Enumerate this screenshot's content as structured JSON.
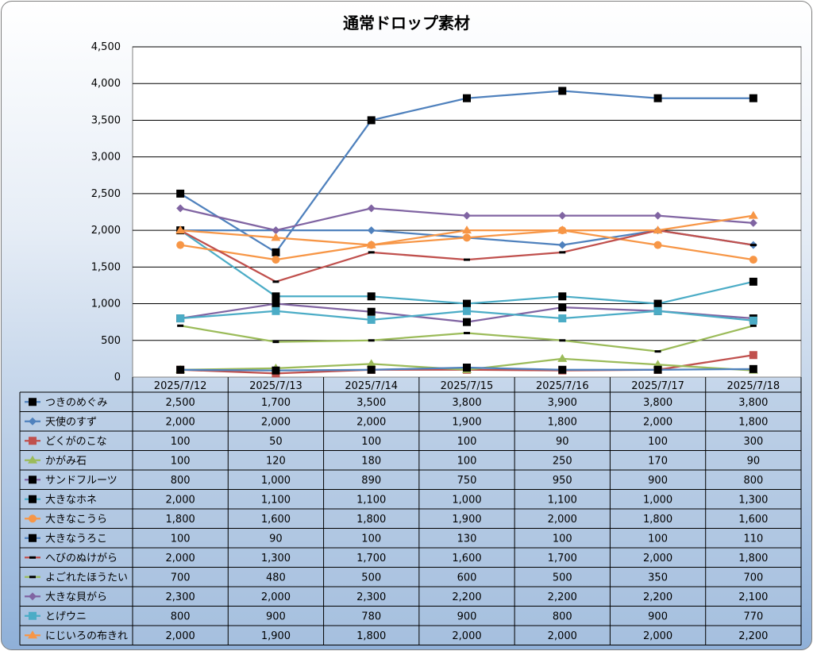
{
  "chart_data": {
    "type": "line",
    "title": "通常ドロップ素材",
    "categories": [
      "2025/7/12",
      "2025/7/13",
      "2025/7/14",
      "2025/7/15",
      "2025/7/16",
      "2025/7/17",
      "2025/7/18"
    ],
    "ylim": [
      0,
      4500
    ],
    "yticks": [
      "0",
      "500",
      "1,000",
      "1,500",
      "2,000",
      "2,500",
      "3,000",
      "3,500",
      "4,000",
      "4,500"
    ],
    "grid": true,
    "legend": "data-table",
    "series": [
      {
        "name": "つきのめぐみ",
        "values": [
          2500,
          1700,
          3500,
          3800,
          3900,
          3800,
          3800
        ],
        "labels": [
          "2,500",
          "1,700",
          "3,500",
          "3,800",
          "3,900",
          "3,800",
          "3,800"
        ],
        "color": "#4f81bd",
        "marker": "square-black"
      },
      {
        "name": "天使のすず",
        "values": [
          2000,
          2000,
          2000,
          1900,
          1800,
          2000,
          1800
        ],
        "labels": [
          "2,000",
          "2,000",
          "2,000",
          "1,900",
          "1,800",
          "2,000",
          "1,800"
        ],
        "color": "#4f81bd",
        "marker": "diamond"
      },
      {
        "name": "どくがのこな",
        "values": [
          100,
          50,
          100,
          100,
          90,
          100,
          300
        ],
        "labels": [
          "100",
          "50",
          "100",
          "100",
          "90",
          "100",
          "300"
        ],
        "color": "#c0504d",
        "marker": "square"
      },
      {
        "name": "かがみ石",
        "values": [
          100,
          120,
          180,
          100,
          250,
          170,
          90
        ],
        "labels": [
          "100",
          "120",
          "180",
          "100",
          "250",
          "170",
          "90"
        ],
        "color": "#9bbb59",
        "marker": "triangle"
      },
      {
        "name": "サンドフルーツ",
        "values": [
          800,
          1000,
          890,
          750,
          950,
          900,
          800
        ],
        "labels": [
          "800",
          "1,000",
          "890",
          "750",
          "950",
          "900",
          "800"
        ],
        "color": "#8064a2",
        "marker": "square-black"
      },
      {
        "name": "大きなホネ",
        "values": [
          2000,
          1100,
          1100,
          1000,
          1100,
          1000,
          1300
        ],
        "labels": [
          "2,000",
          "1,100",
          "1,100",
          "1,000",
          "1,100",
          "1,000",
          "1,300"
        ],
        "color": "#4bacc6",
        "marker": "square-black"
      },
      {
        "name": "大きなこうら",
        "values": [
          1800,
          1600,
          1800,
          1900,
          2000,
          1800,
          1600
        ],
        "labels": [
          "1,800",
          "1,600",
          "1,800",
          "1,900",
          "2,000",
          "1,800",
          "1,600"
        ],
        "color": "#f79646",
        "marker": "circle"
      },
      {
        "name": "大きなうろこ",
        "values": [
          100,
          90,
          100,
          130,
          100,
          100,
          110
        ],
        "labels": [
          "100",
          "90",
          "100",
          "130",
          "100",
          "100",
          "110"
        ],
        "color": "#4f81bd",
        "marker": "square-black"
      },
      {
        "name": "へびのぬけがら",
        "values": [
          2000,
          1300,
          1700,
          1600,
          1700,
          2000,
          1800
        ],
        "labels": [
          "2,000",
          "1,300",
          "1,700",
          "1,600",
          "1,700",
          "2,000",
          "1,800"
        ],
        "color": "#c0504d",
        "marker": "dash"
      },
      {
        "name": "よごれたほうたい",
        "values": [
          700,
          480,
          500,
          600,
          500,
          350,
          700
        ],
        "labels": [
          "700",
          "480",
          "500",
          "600",
          "500",
          "350",
          "700"
        ],
        "color": "#9bbb59",
        "marker": "dash"
      },
      {
        "name": "大きな貝がら",
        "values": [
          2300,
          2000,
          2300,
          2200,
          2200,
          2200,
          2100
        ],
        "labels": [
          "2,300",
          "2,000",
          "2,300",
          "2,200",
          "2,200",
          "2,200",
          "2,100"
        ],
        "color": "#8064a2",
        "marker": "diamond"
      },
      {
        "name": "とげウニ",
        "values": [
          800,
          900,
          780,
          900,
          800,
          900,
          770
        ],
        "labels": [
          "800",
          "900",
          "780",
          "900",
          "800",
          "900",
          "770"
        ],
        "color": "#4bacc6",
        "marker": "square"
      },
      {
        "name": "にじいろの布きれ",
        "values": [
          2000,
          1900,
          1800,
          2000,
          2000,
          2000,
          2200
        ],
        "labels": [
          "2,000",
          "1,900",
          "1,800",
          "2,000",
          "2,000",
          "2,000",
          "2,200"
        ],
        "color": "#f79646",
        "marker": "triangle"
      }
    ]
  }
}
